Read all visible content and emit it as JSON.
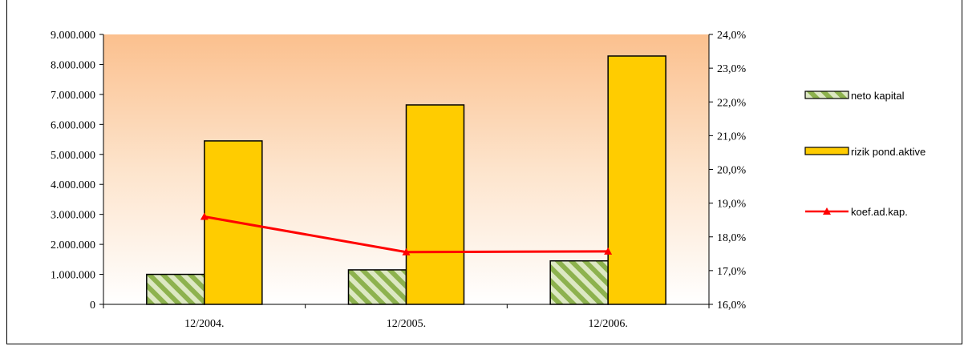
{
  "chart_data": {
    "type": "bar",
    "categories": [
      "12/2004.",
      "12/2005.",
      "12/2006."
    ],
    "series": [
      {
        "name": "neto kapital",
        "kind": "bar",
        "axis": "left",
        "values": [
          1000000,
          1150000,
          1450000
        ],
        "color": "#8DB24E",
        "pattern": "diagonal-hatch"
      },
      {
        "name": "rizik pond.aktive",
        "kind": "bar",
        "axis": "left",
        "values": [
          5450000,
          6650000,
          8280000
        ],
        "color": "#FFCC00"
      },
      {
        "name": "koef.ad.kap.",
        "kind": "line",
        "axis": "right",
        "values": [
          18.6,
          17.55,
          17.57
        ],
        "color": "#FF0000",
        "marker": "triangle"
      }
    ],
    "ylim": [
      0,
      9000000
    ],
    "y2lim": [
      16.0,
      24.0
    ],
    "yticks": [
      "0",
      "1.000.000",
      "2.000.000",
      "3.000.000",
      "4.000.000",
      "5.000.000",
      "6.000.000",
      "7.000.000",
      "8.000.000",
      "9.000.000"
    ],
    "y2ticks": [
      "16,0%",
      "17,0%",
      "18,0%",
      "19,0%",
      "20,0%",
      "21,0%",
      "22,0%",
      "23,0%",
      "24,0%"
    ],
    "legend_position": "right",
    "plot_background": "gradient-orange-to-white"
  }
}
